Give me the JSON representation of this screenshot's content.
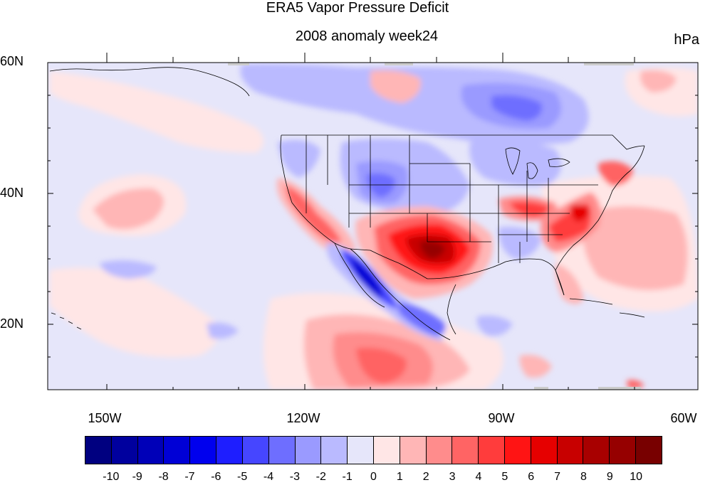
{
  "header": {
    "title": "ERA5 Vapor Pressure Deficit",
    "subtitle": "2008 anomaly week24",
    "units": "hPa"
  },
  "map": {
    "projection": "cylindrical-equidistant",
    "lon_range": [
      -159,
      -60
    ],
    "lat_range": [
      10,
      60
    ],
    "lat_labels": [
      "60N",
      "40N",
      "20N"
    ],
    "lon_labels": [
      "150W",
      "120W",
      "90W",
      "60W"
    ],
    "background_color": "#e6e6fa",
    "features": [
      {
        "name": "southern-plains-hot-anomaly",
        "sign": "positive",
        "peak": 10
      },
      {
        "name": "california-positive-anomaly",
        "sign": "positive",
        "peak": 6
      },
      {
        "name": "mid-atlantic-positive-anomaly",
        "sign": "positive",
        "peak": 7
      },
      {
        "name": "ohio-valley-positive-anomaly",
        "sign": "positive",
        "peak": 5
      },
      {
        "name": "central-america-positive-anomaly",
        "sign": "positive",
        "peak": 4
      },
      {
        "name": "northeast-pacific-positive-anomaly",
        "sign": "positive",
        "peak": 2
      },
      {
        "name": "baja-gulf-negative-anomaly",
        "sign": "negative",
        "peak": -7
      },
      {
        "name": "northern-plains-negative-anomaly",
        "sign": "negative",
        "peak": -3
      },
      {
        "name": "canada-negative-anomaly",
        "sign": "negative",
        "peak": -3
      },
      {
        "name": "great-lakes-negative-anomaly",
        "sign": "negative",
        "peak": -2
      }
    ]
  },
  "colorbar": {
    "labels": [
      "-10",
      "-9",
      "-8",
      "-7",
      "-6",
      "-5",
      "-4",
      "-3",
      "-2",
      "-1",
      "0",
      "1",
      "2",
      "3",
      "4",
      "5",
      "6",
      "7",
      "8",
      "9",
      "10"
    ],
    "colors": [
      "#000080",
      "#00009e",
      "#0000b8",
      "#0000d6",
      "#0000ee",
      "#1e1eff",
      "#4646ff",
      "#6e6eff",
      "#9a9aff",
      "#babaff",
      "#e6e6fa",
      "#ffe6e6",
      "#ffb6b6",
      "#ff8c8c",
      "#ff6464",
      "#ff3c3c",
      "#ff1414",
      "#e60000",
      "#c80000",
      "#a80000",
      "#960000",
      "#780000"
    ]
  }
}
